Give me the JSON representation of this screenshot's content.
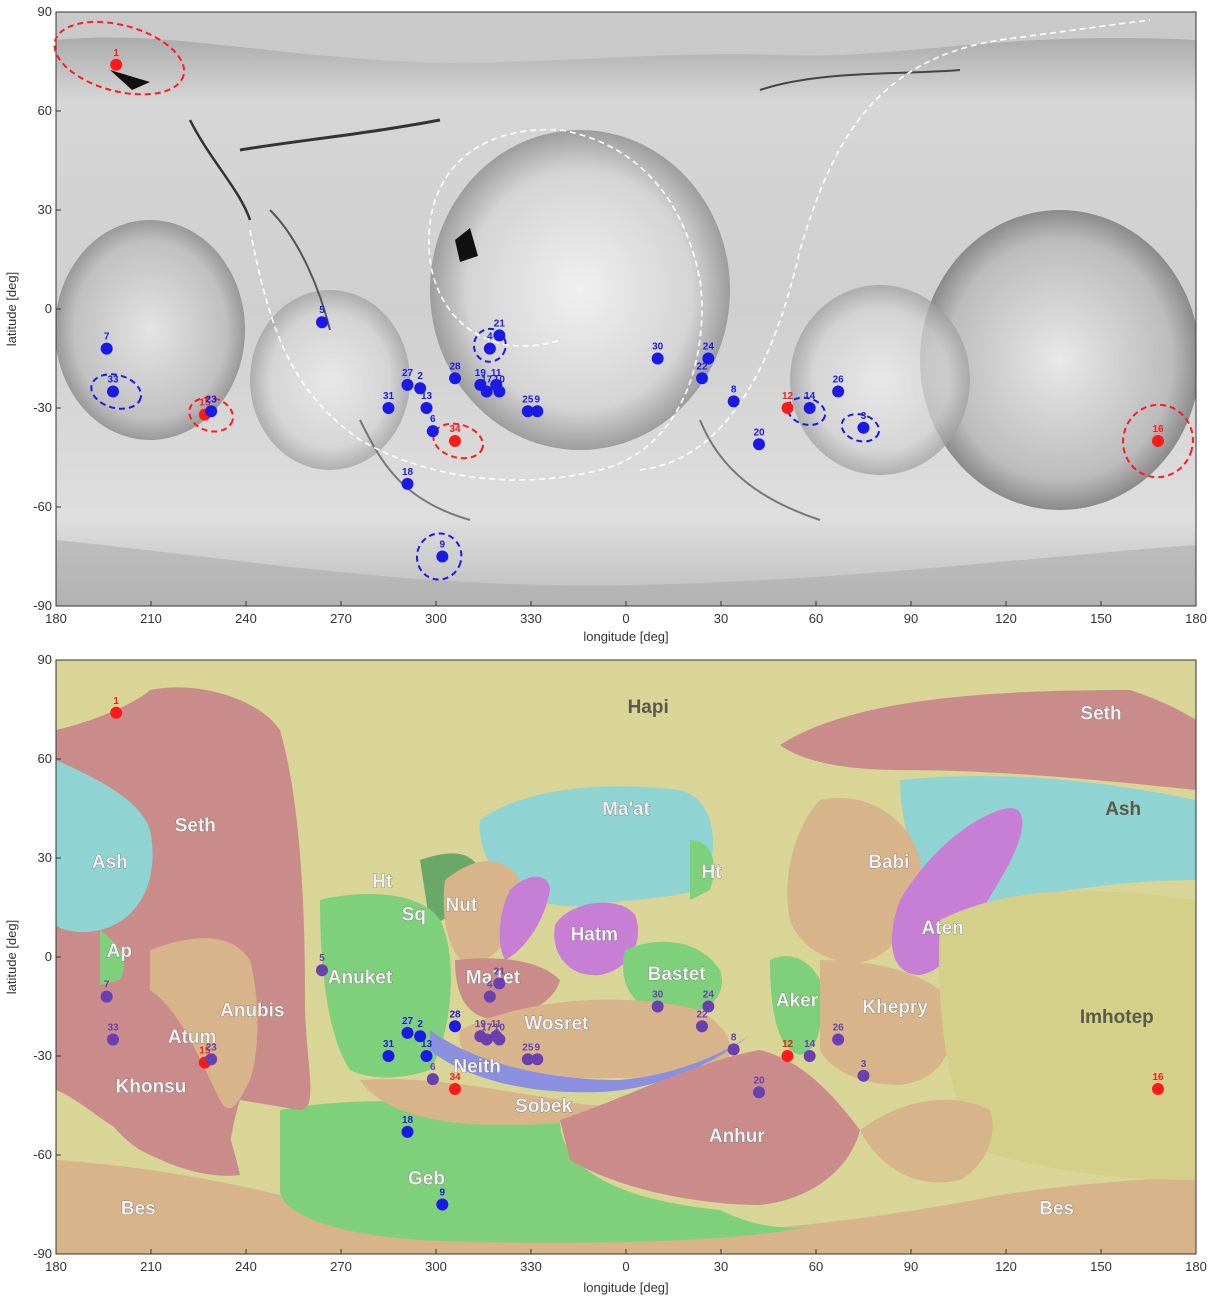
{
  "axes": {
    "xlabel": "longitude [deg]",
    "ylabel": "latitude [deg]",
    "xticks": [
      "180",
      "210",
      "240",
      "270",
      "300",
      "330",
      "0",
      "30",
      "60",
      "90",
      "120",
      "150",
      "180"
    ],
    "yticks": [
      "90",
      "60",
      "30",
      "0",
      "-30",
      "-60",
      "-90"
    ]
  },
  "colors": {
    "red_marker": "#ff1a1a",
    "blue_marker": "#1a1ae6",
    "purple_marker": "#6a3fb0",
    "hapi": "#d9d597",
    "seth": "#c98c8a",
    "ash": "#8fd3d3",
    "green": "#7fd07a",
    "tan": "#d8b48a",
    "purple_region": "#c77fd6",
    "blue_region": "#8a8fe0"
  },
  "chart_data": [
    {
      "type": "scatter",
      "title": "",
      "xlabel": "longitude [deg]",
      "ylabel": "latitude [deg]",
      "xlim": [
        180,
        540
      ],
      "ylim": [
        -90,
        90
      ],
      "xtick_values": [
        180,
        210,
        240,
        270,
        300,
        330,
        360,
        390,
        420,
        450,
        480,
        510,
        540
      ],
      "ytick_values": [
        90,
        60,
        30,
        0,
        -30,
        -60,
        -90
      ],
      "points": [
        {
          "label": "1",
          "lon": 199,
          "lat": 74,
          "color": "red"
        },
        {
          "label": "7",
          "lon": 196,
          "lat": -12,
          "color": "blue"
        },
        {
          "label": "33",
          "lon": 198,
          "lat": -25,
          "color": "blue"
        },
        {
          "label": "15",
          "lon": 227,
          "lat": -32,
          "color": "red"
        },
        {
          "label": "23",
          "lon": 229,
          "lat": -31,
          "color": "blue"
        },
        {
          "label": "5",
          "lon": 264,
          "lat": -4,
          "color": "blue"
        },
        {
          "label": "27",
          "lon": 291,
          "lat": -23,
          "color": "blue"
        },
        {
          "label": "2",
          "lon": 295,
          "lat": -24,
          "color": "blue"
        },
        {
          "label": "31",
          "lon": 285,
          "lat": -30,
          "color": "blue"
        },
        {
          "label": "13",
          "lon": 297,
          "lat": -30,
          "color": "blue"
        },
        {
          "label": "6",
          "lon": 299,
          "lat": -37,
          "color": "blue"
        },
        {
          "label": "34",
          "lon": 306,
          "lat": -40,
          "color": "red"
        },
        {
          "label": "28",
          "lon": 306,
          "lat": -21,
          "color": "blue"
        },
        {
          "label": "19",
          "lon": 314,
          "lat": -23,
          "color": "blue"
        },
        {
          "label": "17",
          "lon": 316,
          "lat": -25,
          "color": "blue"
        },
        {
          "label": "11",
          "lon": 319,
          "lat": -23,
          "color": "blue"
        },
        {
          "label": "10",
          "lon": 320,
          "lat": -25,
          "color": "blue"
        },
        {
          "label": "21",
          "lon": 320,
          "lat": -8,
          "color": "blue"
        },
        {
          "label": "4",
          "lon": 317,
          "lat": -12,
          "color": "blue"
        },
        {
          "label": "25",
          "lon": 329,
          "lat": -31,
          "color": "blue"
        },
        {
          "label": "9",
          "lon": 332,
          "lat": -31,
          "color": "blue"
        },
        {
          "label": "18",
          "lon": 291,
          "lat": -53,
          "color": "blue"
        },
        {
          "label": "9",
          "lon": 302,
          "lat": -75,
          "color": "blue"
        },
        {
          "label": "30",
          "lon": 370,
          "lat": -15,
          "color": "blue"
        },
        {
          "label": "24",
          "lon": 386,
          "lat": -15,
          "color": "blue"
        },
        {
          "label": "22",
          "lon": 384,
          "lat": -21,
          "color": "blue"
        },
        {
          "label": "8",
          "lon": 394,
          "lat": -28,
          "color": "blue"
        },
        {
          "label": "20",
          "lon": 402,
          "lat": -41,
          "color": "blue"
        },
        {
          "label": "12",
          "lon": 411,
          "lat": -30,
          "color": "red"
        },
        {
          "label": "14",
          "lon": 418,
          "lat": -30,
          "color": "blue"
        },
        {
          "label": "26",
          "lon": 427,
          "lat": -25,
          "color": "blue"
        },
        {
          "label": "3",
          "lon": 435,
          "lat": -36,
          "color": "blue"
        },
        {
          "label": "16",
          "lon": 528,
          "lat": -40,
          "color": "red"
        }
      ],
      "dashed_ellipses": [
        {
          "lon": 200,
          "lat": 76,
          "rlon": 21,
          "rlat": 10,
          "color": "red"
        },
        {
          "lon": 199,
          "lat": -25,
          "rlon": 8,
          "rlat": 5,
          "color": "blue"
        },
        {
          "lon": 229,
          "lat": -32,
          "rlon": 7,
          "rlat": 5,
          "color": "red"
        },
        {
          "lon": 307,
          "lat": -40,
          "rlon": 8,
          "rlat": 5,
          "color": "red"
        },
        {
          "lon": 317,
          "lat": -11,
          "rlon": 5,
          "rlat": 5,
          "color": "blue"
        },
        {
          "lon": 301,
          "lat": -75,
          "rlon": 7,
          "rlat": 7,
          "color": "blue"
        },
        {
          "lon": 417,
          "lat": -31,
          "rlon": 6,
          "rlat": 4,
          "color": "blue"
        },
        {
          "lon": 434,
          "lat": -36,
          "rlon": 6,
          "rlat": 4,
          "color": "blue"
        },
        {
          "lon": 528,
          "lat": -40,
          "rlon": 11,
          "rlat": 11,
          "color": "red"
        }
      ]
    },
    {
      "type": "scatter",
      "title": "",
      "xlabel": "longitude [deg]",
      "ylabel": "latitude [deg]",
      "xlim": [
        180,
        540
      ],
      "ylim": [
        -90,
        90
      ],
      "xtick_values": [
        180,
        210,
        240,
        270,
        300,
        330,
        360,
        390,
        420,
        450,
        480,
        510,
        540
      ],
      "ytick_values": [
        90,
        60,
        30,
        0,
        -30,
        -60,
        -90
      ],
      "points": [
        {
          "label": "1",
          "lon": 199,
          "lat": 74,
          "color": "red"
        },
        {
          "label": "7",
          "lon": 196,
          "lat": -12,
          "color": "purple"
        },
        {
          "label": "33",
          "lon": 198,
          "lat": -25,
          "color": "purple"
        },
        {
          "label": "15",
          "lon": 227,
          "lat": -32,
          "color": "red"
        },
        {
          "label": "23",
          "lon": 229,
          "lat": -31,
          "color": "purple"
        },
        {
          "label": "5",
          "lon": 264,
          "lat": -4,
          "color": "purple"
        },
        {
          "label": "27",
          "lon": 291,
          "lat": -23,
          "color": "blue"
        },
        {
          "label": "2",
          "lon": 295,
          "lat": -24,
          "color": "blue"
        },
        {
          "label": "31",
          "lon": 285,
          "lat": -30,
          "color": "blue"
        },
        {
          "label": "13",
          "lon": 297,
          "lat": -30,
          "color": "blue"
        },
        {
          "label": "6",
          "lon": 299,
          "lat": -37,
          "color": "purple"
        },
        {
          "label": "34",
          "lon": 306,
          "lat": -40,
          "color": "red"
        },
        {
          "label": "28",
          "lon": 306,
          "lat": -21,
          "color": "blue"
        },
        {
          "label": "19",
          "lon": 314,
          "lat": -24,
          "color": "purple"
        },
        {
          "label": "17",
          "lon": 316,
          "lat": -25,
          "color": "purple"
        },
        {
          "label": "11",
          "lon": 319,
          "lat": -24,
          "color": "purple"
        },
        {
          "label": "10",
          "lon": 320,
          "lat": -25,
          "color": "purple"
        },
        {
          "label": "21",
          "lon": 320,
          "lat": -8,
          "color": "purple"
        },
        {
          "label": "4",
          "lon": 317,
          "lat": -12,
          "color": "purple"
        },
        {
          "label": "25",
          "lon": 329,
          "lat": -31,
          "color": "purple"
        },
        {
          "label": "9",
          "lon": 332,
          "lat": -31,
          "color": "purple"
        },
        {
          "label": "18",
          "lon": 291,
          "lat": -53,
          "color": "blue"
        },
        {
          "label": "9",
          "lon": 302,
          "lat": -75,
          "color": "blue"
        },
        {
          "label": "30",
          "lon": 370,
          "lat": -15,
          "color": "purple"
        },
        {
          "label": "24",
          "lon": 386,
          "lat": -15,
          "color": "purple"
        },
        {
          "label": "22",
          "lon": 384,
          "lat": -21,
          "color": "purple"
        },
        {
          "label": "8",
          "lon": 394,
          "lat": -28,
          "color": "purple"
        },
        {
          "label": "20",
          "lon": 402,
          "lat": -41,
          "color": "purple"
        },
        {
          "label": "12",
          "lon": 411,
          "lat": -30,
          "color": "red"
        },
        {
          "label": "14",
          "lon": 418,
          "lat": -30,
          "color": "purple"
        },
        {
          "label": "26",
          "lon": 427,
          "lat": -25,
          "color": "purple"
        },
        {
          "label": "3",
          "lon": 435,
          "lat": -36,
          "color": "purple"
        },
        {
          "label": "16",
          "lon": 528,
          "lat": -40,
          "color": "red"
        }
      ],
      "regions": [
        {
          "name": "Hapi",
          "lon": 367,
          "lat": 74,
          "style": "dark"
        },
        {
          "name": "Seth",
          "lon": 510,
          "lat": 72,
          "style": "light"
        },
        {
          "name": "Seth",
          "lon": 224,
          "lat": 38,
          "style": "light"
        },
        {
          "name": "Ash",
          "lon": 197,
          "lat": 27,
          "style": "light"
        },
        {
          "name": "Ash",
          "lon": 517,
          "lat": 43,
          "style": "dark"
        },
        {
          "name": "Ma'at",
          "lon": 360,
          "lat": 43,
          "style": "light"
        },
        {
          "name": "Babi",
          "lon": 443,
          "lat": 27,
          "style": "light"
        },
        {
          "name": "Ht",
          "lon": 283,
          "lat": 21,
          "style": "light"
        },
        {
          "name": "Ht",
          "lon": 387,
          "lat": 24,
          "style": "light"
        },
        {
          "name": "Sq",
          "lon": 293,
          "lat": 11,
          "style": "light"
        },
        {
          "name": "Nut",
          "lon": 308,
          "lat": 14,
          "style": "light"
        },
        {
          "name": "Hatm",
          "lon": 350,
          "lat": 5,
          "style": "light"
        },
        {
          "name": "Aten",
          "lon": 460,
          "lat": 7,
          "style": "light"
        },
        {
          "name": "Ap",
          "lon": 200,
          "lat": 0,
          "style": "light"
        },
        {
          "name": "Anuket",
          "lon": 276,
          "lat": -8,
          "style": "light"
        },
        {
          "name": "Ma'tet",
          "lon": 318,
          "lat": -8,
          "style": "light"
        },
        {
          "name": "Bastet",
          "lon": 376,
          "lat": -7,
          "style": "light"
        },
        {
          "name": "Aker",
          "lon": 414,
          "lat": -15,
          "style": "light"
        },
        {
          "name": "Khepry",
          "lon": 445,
          "lat": -17,
          "style": "light"
        },
        {
          "name": "Imhotep",
          "lon": 515,
          "lat": -20,
          "style": "dark"
        },
        {
          "name": "Anubis",
          "lon": 242,
          "lat": -18,
          "style": "light"
        },
        {
          "name": "Atum",
          "lon": 223,
          "lat": -26,
          "style": "light"
        },
        {
          "name": "Wosret",
          "lon": 338,
          "lat": -22,
          "style": "light"
        },
        {
          "name": "Neith",
          "lon": 313,
          "lat": -35,
          "style": "light"
        },
        {
          "name": "Khonsu",
          "lon": 210,
          "lat": -41,
          "style": "light"
        },
        {
          "name": "Sobek",
          "lon": 334,
          "lat": -47,
          "style": "light"
        },
        {
          "name": "Anhur",
          "lon": 395,
          "lat": -56,
          "style": "light"
        },
        {
          "name": "Geb",
          "lon": 297,
          "lat": -69,
          "style": "light"
        },
        {
          "name": "Bes",
          "lon": 206,
          "lat": -78,
          "style": "light"
        },
        {
          "name": "Bes",
          "lon": 496,
          "lat": -78,
          "style": "light"
        }
      ]
    }
  ]
}
